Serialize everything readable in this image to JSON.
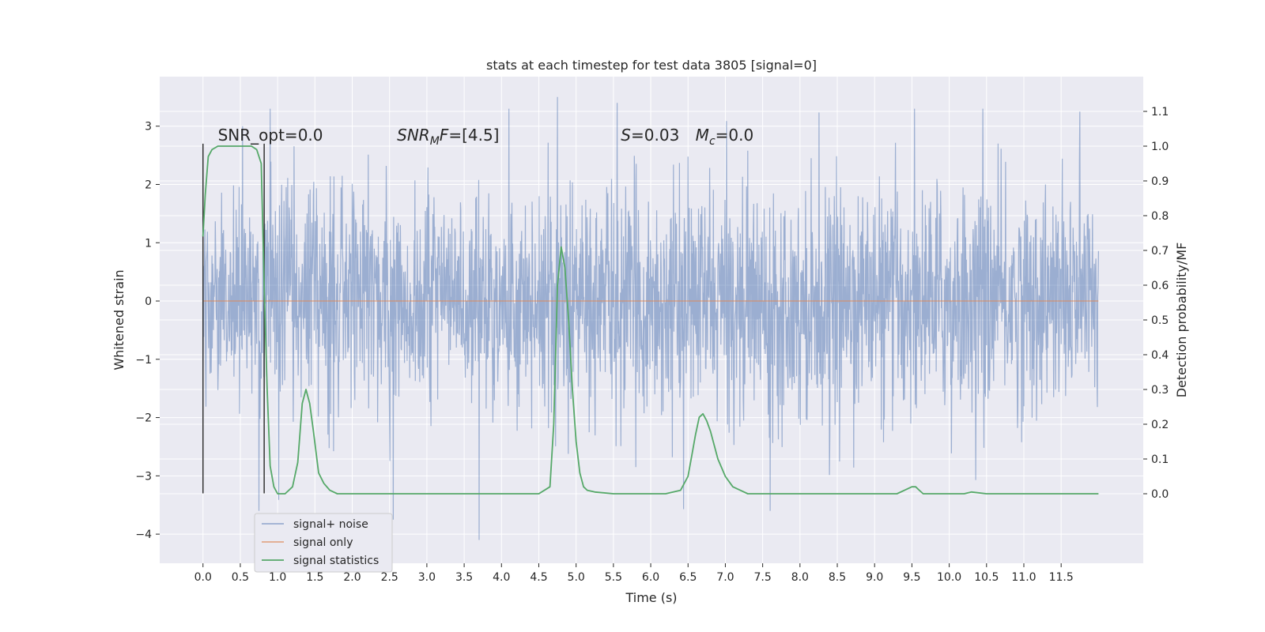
{
  "chart_data": {
    "type": "line",
    "title": "stats at each timestep for test data 3805 [signal=0]",
    "xlabel": "Time (s)",
    "ylabel_left": "Whitened strain",
    "ylabel_right": "Detection probability/MF",
    "xlim": [
      -0.58,
      12.6
    ],
    "ylim_left": [
      -4.5,
      3.85
    ],
    "ylim_right": [
      -0.2,
      1.2
    ],
    "grid": true,
    "x_ticks": [
      0.0,
      0.5,
      1.0,
      1.5,
      2.0,
      2.5,
      3.0,
      3.5,
      4.0,
      4.5,
      5.0,
      5.5,
      6.0,
      6.5,
      7.0,
      7.5,
      8.0,
      8.5,
      9.0,
      9.5,
      10.0,
      10.5,
      11.0,
      11.5
    ],
    "x_tick_labels": [
      "0.0",
      "0.5",
      "1.0",
      "1.5",
      "2.0",
      "2.5",
      "3.0",
      "3.5",
      "4.0",
      "4.5",
      "5.0",
      "5.5",
      "6.0",
      "6.5",
      "7.0",
      "7.5",
      "8.0",
      "8.5",
      "9.0",
      "9.5",
      "10.0",
      "10.5",
      "11.0",
      "11.5"
    ],
    "y_left_ticks": [
      -4,
      -3,
      -2,
      -1,
      0,
      1,
      2,
      3
    ],
    "y_left_tick_labels": [
      "−4",
      "−3",
      "−2",
      "−1",
      "0",
      "1",
      "2",
      "3"
    ],
    "y_right_ticks": [
      0.0,
      0.1,
      0.2,
      0.3,
      0.4,
      0.5,
      0.6,
      0.7,
      0.8,
      0.9,
      1.0,
      1.1
    ],
    "y_right_tick_labels": [
      "0.0",
      "0.1",
      "0.2",
      "0.3",
      "0.4",
      "0.5",
      "0.6",
      "0.7",
      "0.8",
      "0.9",
      "1.0",
      "1.1"
    ],
    "legend_placement": "lower-left",
    "series": [
      {
        "name": "signal+ noise",
        "axis": "left",
        "color": "#4c72b0",
        "x_range": [
          0.0,
          12.0
        ],
        "typical_envelope": [
          -1.5,
          1.5
        ],
        "max": 3.5,
        "min": -4.1,
        "notable_peaks": [
          {
            "x": 0.53,
            "y": 3.0
          },
          {
            "x": 0.75,
            "y": -3.6
          },
          {
            "x": 2.55,
            "y": -3.75
          },
          {
            "x": 3.7,
            "y": -4.1
          },
          {
            "x": 4.1,
            "y": 3.3
          },
          {
            "x": 4.75,
            "y": 3.5
          },
          {
            "x": 5.55,
            "y": 3.4
          },
          {
            "x": 7.6,
            "y": -3.6
          },
          {
            "x": 10.45,
            "y": 3.3
          },
          {
            "x": 11.75,
            "y": 3.25
          }
        ]
      },
      {
        "name": "signal only",
        "axis": "left",
        "color": "#dd8452",
        "x": [
          0.0,
          12.0
        ],
        "y": [
          0.0,
          0.0
        ]
      },
      {
        "name": "signal statistics",
        "axis": "right",
        "color": "#55a868",
        "x": [
          0.0,
          0.03,
          0.07,
          0.12,
          0.2,
          0.3,
          0.5,
          0.65,
          0.72,
          0.78,
          0.82,
          0.86,
          0.9,
          0.95,
          1.0,
          1.1,
          1.2,
          1.27,
          1.33,
          1.38,
          1.43,
          1.48,
          1.55,
          1.62,
          1.7,
          1.8,
          2.0,
          2.5,
          3.0,
          3.5,
          4.0,
          4.5,
          4.65,
          4.7,
          4.75,
          4.8,
          4.85,
          4.9,
          4.95,
          5.0,
          5.05,
          5.1,
          5.15,
          5.25,
          5.5,
          6.0,
          6.2,
          6.4,
          6.5,
          6.55,
          6.6,
          6.65,
          6.7,
          6.75,
          6.8,
          6.85,
          6.9,
          7.0,
          7.1,
          7.2,
          7.3,
          7.5,
          7.7,
          8.0,
          9.0,
          9.3,
          9.4,
          9.5,
          9.55,
          9.6,
          9.65,
          9.7,
          9.8,
          10.0,
          10.2,
          10.3,
          10.5,
          11.0,
          11.5,
          12.0
        ],
        "y": [
          0.74,
          0.86,
          0.97,
          0.99,
          1.0,
          1.0,
          1.0,
          1.0,
          0.99,
          0.95,
          0.6,
          0.3,
          0.08,
          0.02,
          0.0,
          0.0,
          0.02,
          0.09,
          0.26,
          0.3,
          0.26,
          0.18,
          0.06,
          0.03,
          0.01,
          0.0,
          0.0,
          0.0,
          0.0,
          0.0,
          0.0,
          0.0,
          0.02,
          0.2,
          0.6,
          0.71,
          0.65,
          0.5,
          0.3,
          0.15,
          0.06,
          0.02,
          0.01,
          0.005,
          0.0,
          0.0,
          0.0,
          0.01,
          0.05,
          0.11,
          0.17,
          0.22,
          0.23,
          0.21,
          0.18,
          0.14,
          0.1,
          0.05,
          0.02,
          0.01,
          0.0,
          0.0,
          0.0,
          0.0,
          0.0,
          0.0,
          0.01,
          0.02,
          0.02,
          0.01,
          0.0,
          0.0,
          0.0,
          0.0,
          0.0,
          0.005,
          0.0,
          0.0,
          0.0,
          0.0
        ]
      }
    ],
    "vertical_markers": [
      {
        "x": 0.0,
        "y_range": [
          -3.3,
          2.7
        ],
        "color": "#333333"
      },
      {
        "x": 0.82,
        "y_range": [
          -3.3,
          2.7
        ],
        "color": "#333333"
      }
    ],
    "annotations": [
      {
        "id": "snr-opt",
        "text": "SNR_opt=0.0",
        "x": 0.2,
        "y": 2.75
      },
      {
        "id": "snr-mf",
        "text": "SNR_MF=[4.5]",
        "parts": [
          {
            "t": "SNR",
            "i": true
          },
          {
            "t": "M",
            "i": true,
            "sub": true
          },
          {
            "t": "F",
            "i": true
          },
          {
            "t": "=[4.5]",
            "i": false
          }
        ],
        "x": 2.6,
        "y": 2.75
      },
      {
        "id": "s-stat",
        "text": "S=0.03",
        "parts": [
          {
            "t": "S",
            "i": true
          },
          {
            "t": "=0.03",
            "i": false
          }
        ],
        "x": 5.6,
        "y": 2.75
      },
      {
        "id": "mc",
        "text": "M_c=0.0",
        "parts": [
          {
            "t": "M",
            "i": true
          },
          {
            "t": "c",
            "i": true,
            "sub": true
          },
          {
            "t": "=0.0",
            "i": false
          }
        ],
        "x": 6.6,
        "y": 2.75
      }
    ]
  }
}
